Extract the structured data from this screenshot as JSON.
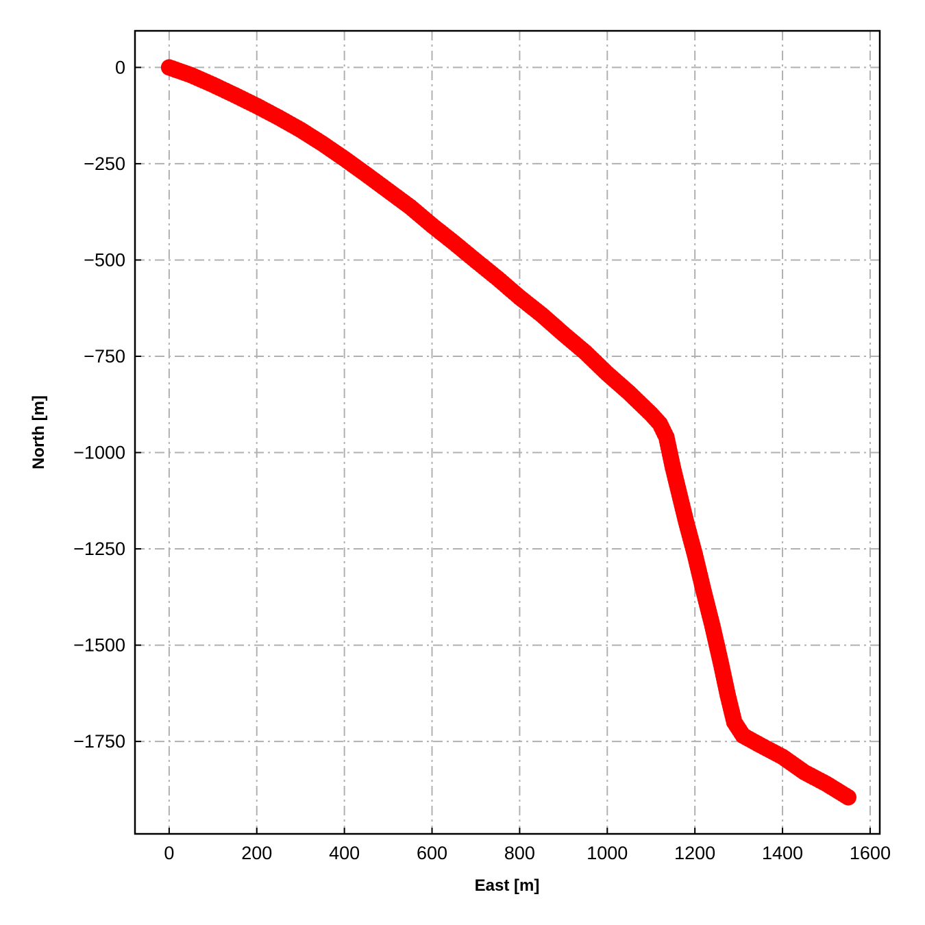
{
  "chart_data": {
    "type": "scatter",
    "xlabel": "East [m]",
    "ylabel": "North [m]",
    "xlim": [
      -78,
      1622
    ],
    "ylim": [
      -1990,
      95
    ],
    "grid": true,
    "marker_color": "#ff0000",
    "x_ticks": [
      {
        "value": 0,
        "label": "0"
      },
      {
        "value": 200,
        "label": "200"
      },
      {
        "value": 400,
        "label": "400"
      },
      {
        "value": 600,
        "label": "600"
      },
      {
        "value": 800,
        "label": "800"
      },
      {
        "value": 1000,
        "label": "1000"
      },
      {
        "value": 1200,
        "label": "1200"
      },
      {
        "value": 1400,
        "label": "1400"
      },
      {
        "value": 1600,
        "label": "1600"
      }
    ],
    "y_ticks": [
      {
        "value": 0,
        "label": "0"
      },
      {
        "value": -250,
        "label": "−250"
      },
      {
        "value": -500,
        "label": "−500"
      },
      {
        "value": -750,
        "label": "−750"
      },
      {
        "value": -1000,
        "label": "−1000"
      },
      {
        "value": -1250,
        "label": "−1250"
      },
      {
        "value": -1500,
        "label": "−1500"
      },
      {
        "value": -1750,
        "label": "−1750"
      }
    ],
    "path": [
      [
        0,
        0
      ],
      [
        50,
        -20
      ],
      [
        100,
        -45
      ],
      [
        150,
        -72
      ],
      [
        200,
        -100
      ],
      [
        250,
        -130
      ],
      [
        300,
        -162
      ],
      [
        350,
        -198
      ],
      [
        400,
        -237
      ],
      [
        450,
        -278
      ],
      [
        500,
        -320
      ],
      [
        550,
        -362
      ],
      [
        600,
        -410
      ],
      [
        650,
        -455
      ],
      [
        700,
        -502
      ],
      [
        750,
        -548
      ],
      [
        800,
        -597
      ],
      [
        850,
        -642
      ],
      [
        900,
        -692
      ],
      [
        950,
        -740
      ],
      [
        1000,
        -795
      ],
      [
        1050,
        -845
      ],
      [
        1100,
        -900
      ],
      [
        1120,
        -925
      ],
      [
        1135,
        -960
      ],
      [
        1150,
        -1040
      ],
      [
        1165,
        -1110
      ],
      [
        1180,
        -1180
      ],
      [
        1200,
        -1265
      ],
      [
        1220,
        -1360
      ],
      [
        1240,
        -1450
      ],
      [
        1260,
        -1550
      ],
      [
        1275,
        -1630
      ],
      [
        1290,
        -1700
      ],
      [
        1310,
        -1735
      ],
      [
        1350,
        -1760
      ],
      [
        1400,
        -1790
      ],
      [
        1450,
        -1830
      ],
      [
        1500,
        -1860
      ],
      [
        1550,
        -1895
      ]
    ]
  }
}
